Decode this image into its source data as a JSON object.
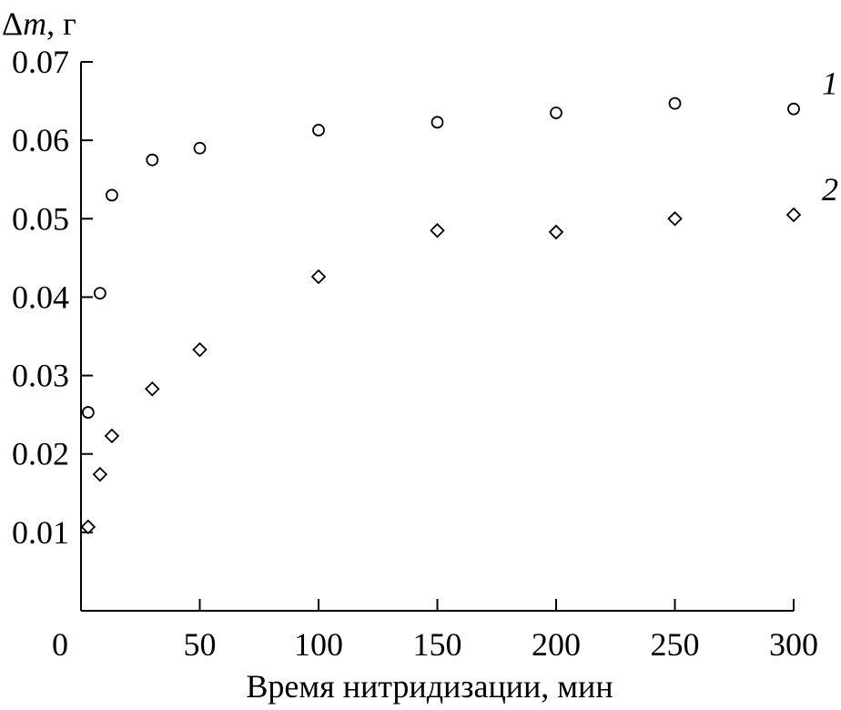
{
  "chart_data": {
    "type": "scatter",
    "title": "",
    "xlabel": "Время нитридизации, мин",
    "ylabel_prefix": "Δ",
    "ylabel_var": "m",
    "ylabel_suffix": ", г",
    "xlim": [
      0,
      300
    ],
    "ylim": [
      0,
      0.07
    ],
    "x_ticks": [
      0,
      50,
      100,
      150,
      200,
      250,
      300
    ],
    "x_tick_labels": [
      "0",
      "50",
      "100",
      "150",
      "200",
      "250",
      "300"
    ],
    "y_ticks": [
      0.01,
      0.02,
      0.03,
      0.04,
      0.05,
      0.06,
      0.07
    ],
    "y_tick_labels": [
      "0.01",
      "0.02",
      "0.03",
      "0.04",
      "0.05",
      "0.06",
      "0.07"
    ],
    "grid": false,
    "series": [
      {
        "name": "1",
        "marker": "circle",
        "x": [
          3,
          8,
          13,
          30,
          50,
          100,
          150,
          200,
          250,
          300
        ],
        "y": [
          0.0253,
          0.0405,
          0.053,
          0.0575,
          0.059,
          0.0613,
          0.0623,
          0.0635,
          0.0647,
          0.064
        ]
      },
      {
        "name": "2",
        "marker": "diamond",
        "x": [
          3,
          8,
          13,
          30,
          50,
          100,
          150,
          200,
          250,
          300
        ],
        "y": [
          0.0107,
          0.0174,
          0.0223,
          0.0283,
          0.0333,
          0.0426,
          0.0485,
          0.0483,
          0.05,
          0.0505
        ]
      }
    ]
  }
}
